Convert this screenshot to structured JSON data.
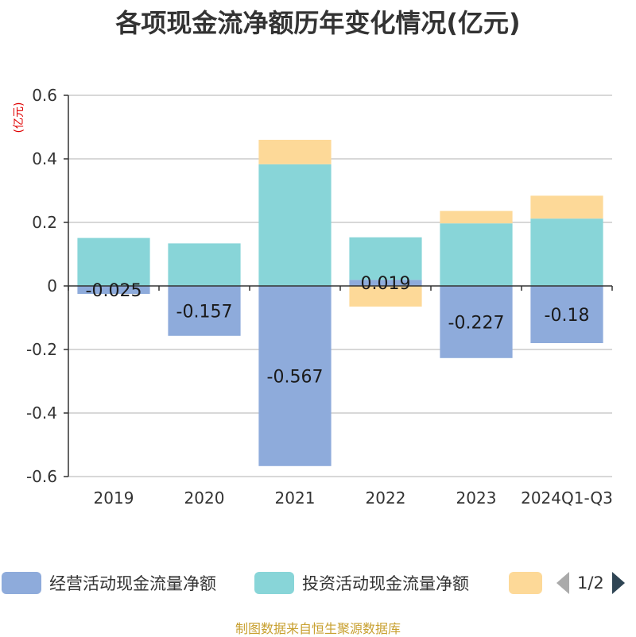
{
  "chart_data": {
    "type": "bar",
    "stacked": true,
    "title": "各项现金流净额历年变化情况(亿元)",
    "ylabel": "(亿元)",
    "xlabel": "",
    "ylim": [
      -0.6,
      0.6
    ],
    "yticks": [
      0.6,
      0.4,
      0.2,
      0,
      -0.2,
      -0.4,
      -0.6
    ],
    "ytick_labels": [
      "0.6",
      "0.4",
      "0.2",
      "0",
      "-0.2",
      "-0.4",
      "-0.6"
    ],
    "categories": [
      "2019",
      "2020",
      "2021",
      "2022",
      "2023",
      "2024Q1-Q3"
    ],
    "grid": true,
    "series": [
      {
        "name": "经营活动现金流量净额",
        "color": "#8eabdb",
        "values": [
          -0.025,
          -0.157,
          -0.567,
          0.019,
          -0.227,
          -0.18
        ],
        "labels": [
          "-0.025",
          "-0.157",
          "-0.567",
          "0.019",
          "-0.227",
          "-0.18"
        ]
      },
      {
        "name": "投资活动现金流量净额",
        "color": "#88d5d8",
        "values": [
          0.151,
          0.134,
          0.383,
          0.134,
          0.197,
          0.212
        ]
      },
      {
        "name": "",
        "color": "#fdd998",
        "values": [
          0,
          0,
          0.077,
          -0.065,
          0.039,
          0.072
        ]
      }
    ],
    "legend_position": "bottom",
    "legend_page": "1/2"
  },
  "source_note": "制图数据来自恒生聚源数据库"
}
